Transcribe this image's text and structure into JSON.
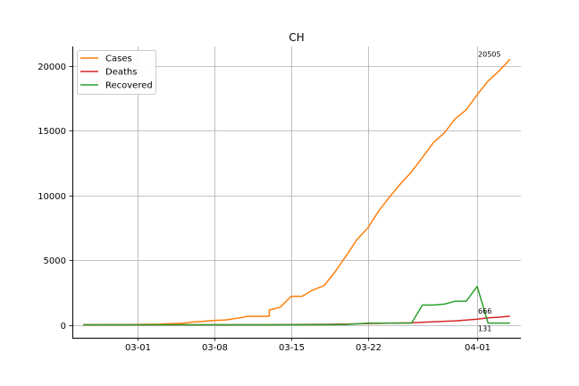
{
  "chart_data": {
    "type": "line",
    "title": "CH",
    "xlabel": "",
    "ylabel": "",
    "x_range": [
      "2020-02-24",
      "2020-04-05"
    ],
    "ylim": [
      -1000,
      21500
    ],
    "grid": true,
    "legend_position": "top-left",
    "x_ticks": [
      {
        "date": "2020-03-01",
        "label": "03-01"
      },
      {
        "date": "2020-03-08",
        "label": "03-08"
      },
      {
        "date": "2020-03-15",
        "label": "03-15"
      },
      {
        "date": "2020-03-22",
        "label": "03-22"
      },
      {
        "date": "2020-04-01",
        "label": "04-01"
      }
    ],
    "y_ticks": [
      0,
      5000,
      10000,
      15000,
      20000
    ],
    "series": [
      {
        "name": "Cases",
        "color": "#ff7f0e",
        "end_label": "20505",
        "points": [
          [
            "2020-02-25",
            1
          ],
          [
            "2020-02-26",
            1
          ],
          [
            "2020-02-27",
            8
          ],
          [
            "2020-02-28",
            8
          ],
          [
            "2020-02-29",
            18
          ],
          [
            "2020-03-01",
            27
          ],
          [
            "2020-03-02",
            42
          ],
          [
            "2020-03-03",
            56
          ],
          [
            "2020-03-04",
            90
          ],
          [
            "2020-03-05",
            114
          ],
          [
            "2020-03-06",
            214
          ],
          [
            "2020-03-07",
            268
          ],
          [
            "2020-03-08",
            337
          ],
          [
            "2020-03-09",
            374
          ],
          [
            "2020-03-10",
            491
          ],
          [
            "2020-03-11",
            652
          ],
          [
            "2020-03-12",
            652
          ],
          [
            "2020-03-13",
            652
          ],
          [
            "2020-03-13",
            1139
          ],
          [
            "2020-03-14",
            1359
          ],
          [
            "2020-03-15",
            2200
          ],
          [
            "2020-03-16",
            2200
          ],
          [
            "2020-03-17",
            2700
          ],
          [
            "2020-03-18",
            3028
          ],
          [
            "2020-03-19",
            4075
          ],
          [
            "2020-03-20",
            5294
          ],
          [
            "2020-03-21",
            6575
          ],
          [
            "2020-03-22",
            7474
          ],
          [
            "2020-03-23",
            8795
          ],
          [
            "2020-03-24",
            9877
          ],
          [
            "2020-03-25",
            10897
          ],
          [
            "2020-03-26",
            11811
          ],
          [
            "2020-03-27",
            12928
          ],
          [
            "2020-03-28",
            14076
          ],
          [
            "2020-03-29",
            14829
          ],
          [
            "2020-03-30",
            15922
          ],
          [
            "2020-03-31",
            16605
          ],
          [
            "2020-04-01",
            17768
          ],
          [
            "2020-04-02",
            18827
          ],
          [
            "2020-04-03",
            19606
          ],
          [
            "2020-04-04",
            20505
          ]
        ]
      },
      {
        "name": "Deaths",
        "color": "#d62728",
        "end_label": "666",
        "points": [
          [
            "2020-02-25",
            0
          ],
          [
            "2020-03-05",
            1
          ],
          [
            "2020-03-10",
            3
          ],
          [
            "2020-03-13",
            11
          ],
          [
            "2020-03-15",
            14
          ],
          [
            "2020-03-18",
            33
          ],
          [
            "2020-03-20",
            56
          ],
          [
            "2020-03-22",
            98
          ],
          [
            "2020-03-24",
            122
          ],
          [
            "2020-03-26",
            153
          ],
          [
            "2020-03-28",
            235
          ],
          [
            "2020-03-30",
            300
          ],
          [
            "2020-04-01",
            432
          ],
          [
            "2020-04-02",
            536
          ],
          [
            "2020-04-03",
            591
          ],
          [
            "2020-04-04",
            666
          ]
        ]
      },
      {
        "name": "Recovered",
        "color": "#2ca02c",
        "end_label": "131",
        "points": [
          [
            "2020-02-25",
            0
          ],
          [
            "2020-03-05",
            3
          ],
          [
            "2020-03-15",
            4
          ],
          [
            "2020-03-20",
            15
          ],
          [
            "2020-03-22",
            131
          ],
          [
            "2020-03-26",
            131
          ],
          [
            "2020-03-27",
            1530
          ],
          [
            "2020-03-28",
            1530
          ],
          [
            "2020-03-29",
            1595
          ],
          [
            "2020-03-30",
            1823
          ],
          [
            "2020-03-31",
            1823
          ],
          [
            "2020-04-01",
            2967
          ],
          [
            "2020-04-02",
            131
          ],
          [
            "2020-04-03",
            131
          ],
          [
            "2020-04-04",
            131
          ]
        ]
      }
    ]
  }
}
